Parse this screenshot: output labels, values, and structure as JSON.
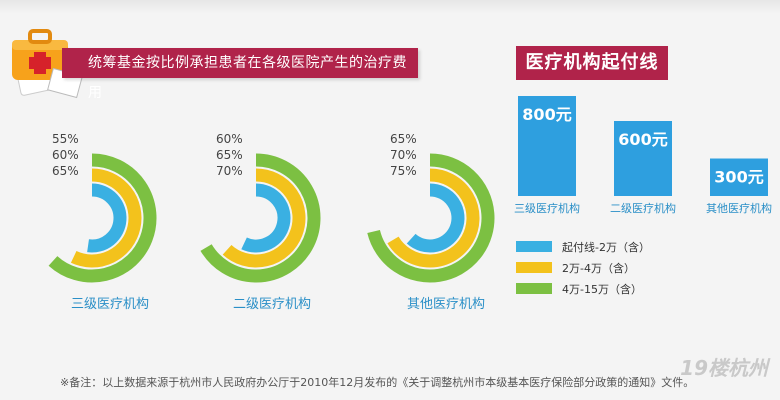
{
  "left_title": "统筹基金按比例承担患者在各级医院产生的治疗费用",
  "right_title": "医疗机构起付线",
  "colors": {
    "inner": "#3ab0e2",
    "middle": "#f3c21c",
    "outer": "#7cc042",
    "title_bg": "#b0234a",
    "bar": "#2e9fdf"
  },
  "chart_data": [
    {
      "type": "radial-bar",
      "series_colors": [
        "#3ab0e2",
        "#f3c21c",
        "#7cc042"
      ],
      "groups": [
        {
          "name": "三级医疗机构",
          "values": [
            55,
            60,
            65
          ],
          "labels": [
            "55%",
            "60%",
            "65%"
          ]
        },
        {
          "name": "二级医疗机构",
          "values": [
            60,
            65,
            70
          ],
          "labels": [
            "60%",
            "65%",
            "70%"
          ]
        },
        {
          "name": "其他医疗机构",
          "values": [
            65,
            70,
            75
          ],
          "labels": [
            "65%",
            "70%",
            "75%"
          ]
        }
      ],
      "legend": [
        {
          "label": "起付线-2万（含）",
          "color": "#3ab0e2"
        },
        {
          "label": "2万-4万（含）",
          "color": "#f3c21c"
        },
        {
          "label": "4万-15万（含）",
          "color": "#7cc042"
        }
      ]
    },
    {
      "type": "bar",
      "title": "医疗机构起付线",
      "categories": [
        "三级医疗机构",
        "二级医疗机构",
        "其他医疗机构"
      ],
      "values": [
        800,
        600,
        300
      ],
      "value_labels": [
        "800元",
        "600元",
        "300元"
      ]
    }
  ],
  "footnote": "※备注：以上数据来源于杭州市人民政府办公厅于2010年12月发布的《关于调整杭州市本级基本医疗保险部分政策的通知》文件。",
  "watermark": "19楼杭州"
}
